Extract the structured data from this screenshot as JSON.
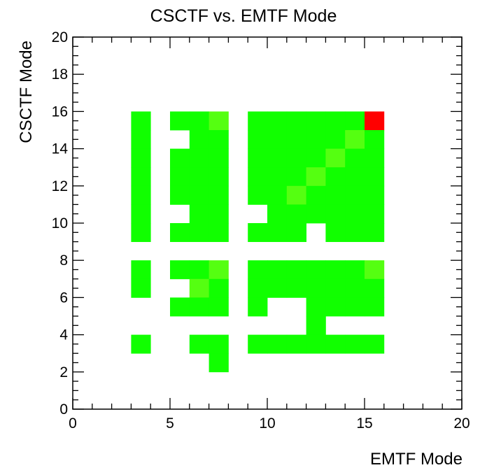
{
  "chart_data": {
    "type": "heatmap",
    "title": "CSCTF vs. EMTF Mode",
    "xlabel": "EMTF Mode",
    "ylabel": "CSCTF Mode",
    "xlim": [
      0,
      20
    ],
    "ylim": [
      0,
      20
    ],
    "x_ticks": [
      0,
      5,
      10,
      15,
      20
    ],
    "y_ticks": [
      0,
      2,
      4,
      6,
      8,
      10,
      12,
      14,
      16,
      18,
      20
    ],
    "grid": false,
    "colors": {
      "low": "#11ff00",
      "mid": "#55ff11",
      "high": "#ff0000"
    },
    "cells": [
      {
        "x": 3,
        "y": 15,
        "level": "low"
      },
      {
        "x": 3,
        "y": 14,
        "level": "low"
      },
      {
        "x": 3,
        "y": 13,
        "level": "low"
      },
      {
        "x": 3,
        "y": 12,
        "level": "low"
      },
      {
        "x": 3,
        "y": 11,
        "level": "low"
      },
      {
        "x": 3,
        "y": 10,
        "level": "low"
      },
      {
        "x": 3,
        "y": 9,
        "level": "low"
      },
      {
        "x": 3,
        "y": 7,
        "level": "low"
      },
      {
        "x": 3,
        "y": 6,
        "level": "low"
      },
      {
        "x": 3,
        "y": 3,
        "level": "low"
      },
      {
        "x": 5,
        "y": 15,
        "level": "low"
      },
      {
        "x": 5,
        "y": 13,
        "level": "low"
      },
      {
        "x": 5,
        "y": 12,
        "level": "low"
      },
      {
        "x": 5,
        "y": 11,
        "level": "low"
      },
      {
        "x": 5,
        "y": 9,
        "level": "low"
      },
      {
        "x": 5,
        "y": 7,
        "level": "low"
      },
      {
        "x": 5,
        "y": 5,
        "level": "low"
      },
      {
        "x": 6,
        "y": 15,
        "level": "low"
      },
      {
        "x": 6,
        "y": 14,
        "level": "low"
      },
      {
        "x": 6,
        "y": 13,
        "level": "low"
      },
      {
        "x": 6,
        "y": 12,
        "level": "low"
      },
      {
        "x": 6,
        "y": 11,
        "level": "low"
      },
      {
        "x": 6,
        "y": 10,
        "level": "low"
      },
      {
        "x": 6,
        "y": 9,
        "level": "low"
      },
      {
        "x": 6,
        "y": 7,
        "level": "low"
      },
      {
        "x": 6,
        "y": 6,
        "level": "mid"
      },
      {
        "x": 6,
        "y": 5,
        "level": "low"
      },
      {
        "x": 6,
        "y": 3,
        "level": "low"
      },
      {
        "x": 7,
        "y": 15,
        "level": "mid"
      },
      {
        "x": 7,
        "y": 14,
        "level": "low"
      },
      {
        "x": 7,
        "y": 13,
        "level": "low"
      },
      {
        "x": 7,
        "y": 12,
        "level": "low"
      },
      {
        "x": 7,
        "y": 11,
        "level": "low"
      },
      {
        "x": 7,
        "y": 10,
        "level": "low"
      },
      {
        "x": 7,
        "y": 9,
        "level": "low"
      },
      {
        "x": 7,
        "y": 7,
        "level": "mid"
      },
      {
        "x": 7,
        "y": 6,
        "level": "low"
      },
      {
        "x": 7,
        "y": 5,
        "level": "low"
      },
      {
        "x": 7,
        "y": 3,
        "level": "low"
      },
      {
        "x": 7,
        "y": 2,
        "level": "low"
      },
      {
        "x": 9,
        "y": 15,
        "level": "low"
      },
      {
        "x": 9,
        "y": 14,
        "level": "low"
      },
      {
        "x": 9,
        "y": 13,
        "level": "low"
      },
      {
        "x": 9,
        "y": 12,
        "level": "low"
      },
      {
        "x": 9,
        "y": 11,
        "level": "low"
      },
      {
        "x": 9,
        "y": 9,
        "level": "low"
      },
      {
        "x": 9,
        "y": 7,
        "level": "low"
      },
      {
        "x": 9,
        "y": 6,
        "level": "low"
      },
      {
        "x": 9,
        "y": 5,
        "level": "low"
      },
      {
        "x": 9,
        "y": 3,
        "level": "low"
      },
      {
        "x": 10,
        "y": 15,
        "level": "low"
      },
      {
        "x": 10,
        "y": 14,
        "level": "low"
      },
      {
        "x": 10,
        "y": 13,
        "level": "low"
      },
      {
        "x": 10,
        "y": 12,
        "level": "low"
      },
      {
        "x": 10,
        "y": 11,
        "level": "low"
      },
      {
        "x": 10,
        "y": 10,
        "level": "low"
      },
      {
        "x": 10,
        "y": 9,
        "level": "low"
      },
      {
        "x": 10,
        "y": 7,
        "level": "low"
      },
      {
        "x": 10,
        "y": 6,
        "level": "low"
      },
      {
        "x": 10,
        "y": 3,
        "level": "low"
      },
      {
        "x": 11,
        "y": 15,
        "level": "low"
      },
      {
        "x": 11,
        "y": 14,
        "level": "low"
      },
      {
        "x": 11,
        "y": 13,
        "level": "low"
      },
      {
        "x": 11,
        "y": 12,
        "level": "low"
      },
      {
        "x": 11,
        "y": 11,
        "level": "mid"
      },
      {
        "x": 11,
        "y": 10,
        "level": "low"
      },
      {
        "x": 11,
        "y": 9,
        "level": "low"
      },
      {
        "x": 11,
        "y": 7,
        "level": "low"
      },
      {
        "x": 11,
        "y": 6,
        "level": "low"
      },
      {
        "x": 11,
        "y": 3,
        "level": "low"
      },
      {
        "x": 12,
        "y": 15,
        "level": "low"
      },
      {
        "x": 12,
        "y": 14,
        "level": "low"
      },
      {
        "x": 12,
        "y": 13,
        "level": "low"
      },
      {
        "x": 12,
        "y": 12,
        "level": "mid"
      },
      {
        "x": 12,
        "y": 11,
        "level": "low"
      },
      {
        "x": 12,
        "y": 10,
        "level": "low"
      },
      {
        "x": 12,
        "y": 7,
        "level": "low"
      },
      {
        "x": 12,
        "y": 6,
        "level": "low"
      },
      {
        "x": 12,
        "y": 5,
        "level": "low"
      },
      {
        "x": 12,
        "y": 4,
        "level": "low"
      },
      {
        "x": 12,
        "y": 3,
        "level": "low"
      },
      {
        "x": 13,
        "y": 15,
        "level": "low"
      },
      {
        "x": 13,
        "y": 14,
        "level": "low"
      },
      {
        "x": 13,
        "y": 13,
        "level": "mid"
      },
      {
        "x": 13,
        "y": 12,
        "level": "low"
      },
      {
        "x": 13,
        "y": 11,
        "level": "low"
      },
      {
        "x": 13,
        "y": 10,
        "level": "low"
      },
      {
        "x": 13,
        "y": 9,
        "level": "low"
      },
      {
        "x": 13,
        "y": 7,
        "level": "low"
      },
      {
        "x": 13,
        "y": 6,
        "level": "low"
      },
      {
        "x": 13,
        "y": 5,
        "level": "low"
      },
      {
        "x": 13,
        "y": 3,
        "level": "low"
      },
      {
        "x": 14,
        "y": 15,
        "level": "low"
      },
      {
        "x": 14,
        "y": 14,
        "level": "mid"
      },
      {
        "x": 14,
        "y": 13,
        "level": "low"
      },
      {
        "x": 14,
        "y": 12,
        "level": "low"
      },
      {
        "x": 14,
        "y": 11,
        "level": "low"
      },
      {
        "x": 14,
        "y": 10,
        "level": "low"
      },
      {
        "x": 14,
        "y": 9,
        "level": "low"
      },
      {
        "x": 14,
        "y": 7,
        "level": "low"
      },
      {
        "x": 14,
        "y": 6,
        "level": "low"
      },
      {
        "x": 14,
        "y": 5,
        "level": "low"
      },
      {
        "x": 14,
        "y": 3,
        "level": "low"
      },
      {
        "x": 15,
        "y": 15,
        "level": "high"
      },
      {
        "x": 15,
        "y": 14,
        "level": "low"
      },
      {
        "x": 15,
        "y": 13,
        "level": "low"
      },
      {
        "x": 15,
        "y": 12,
        "level": "low"
      },
      {
        "x": 15,
        "y": 11,
        "level": "low"
      },
      {
        "x": 15,
        "y": 10,
        "level": "low"
      },
      {
        "x": 15,
        "y": 9,
        "level": "low"
      },
      {
        "x": 15,
        "y": 7,
        "level": "mid"
      },
      {
        "x": 15,
        "y": 6,
        "level": "low"
      },
      {
        "x": 15,
        "y": 5,
        "level": "low"
      },
      {
        "x": 15,
        "y": 3,
        "level": "low"
      }
    ]
  }
}
